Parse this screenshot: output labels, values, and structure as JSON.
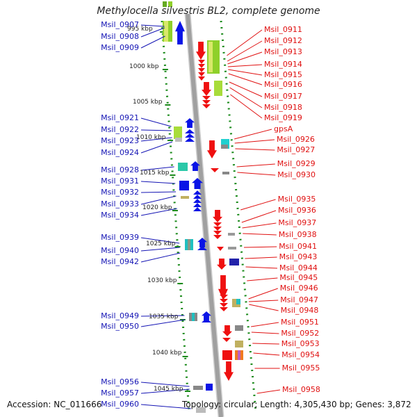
{
  "title": "Methylocella silvestris BL2, complete genome",
  "footer": {
    "accession": "Accession: NC_011666",
    "topology": "Topology: circular; Length: 4,305,430 bp; Genes: 3,872"
  },
  "colors": {
    "forward_gene": "#0a14e6",
    "reverse_gene": "#ef1010",
    "left_label": "#1414b4",
    "right_label": "#e01010",
    "grid": "#1a8a1a",
    "backbone": "#a0a0a0"
  },
  "ruler_labels": [
    "995 kbp",
    "1000 kbp",
    "1005 kbp",
    "1010 kbp",
    "1015 kbp",
    "1020 kbp",
    "1025 kbp",
    "1030 kbp",
    "1035 kbp",
    "1040 kbp",
    "1045 kbp"
  ],
  "left_genes": [
    "Msil_0907",
    "Msil_0908",
    "Msil_0909",
    "Msil_0921",
    "Msil_0922",
    "Msil_0923",
    "Msil_0924",
    "Msil_0928",
    "Msil_0931",
    "Msil_0932",
    "Msil_0933",
    "Msil_0934",
    "Msil_0939",
    "Msil_0940",
    "Msil_0942",
    "Msil_0949",
    "Msil_0950",
    "Msil_0956",
    "Msil_0957",
    "Msil_0960"
  ],
  "right_genes": [
    "Msil_0911",
    "Msil_0912",
    "Msil_0913",
    "Msil_0914",
    "Msil_0915",
    "Msil_0916",
    "Msil_0917",
    "Msil_0918",
    "Msil_0919",
    "gpsA",
    "Msil_0926",
    "Msil_0927",
    "Msil_0929",
    "Msil_0930",
    "Msil_0935",
    "Msil_0936",
    "Msil_0937",
    "Msil_0938",
    "Msil_0941",
    "Msil_0943",
    "Msil_0944",
    "Msil_0945",
    "Msil_0946",
    "Msil_0947",
    "Msil_0948",
    "Msil_0951",
    "Msil_0952",
    "Msil_0953",
    "Msil_0954",
    "Msil_0955",
    "Msil_0958"
  ]
}
